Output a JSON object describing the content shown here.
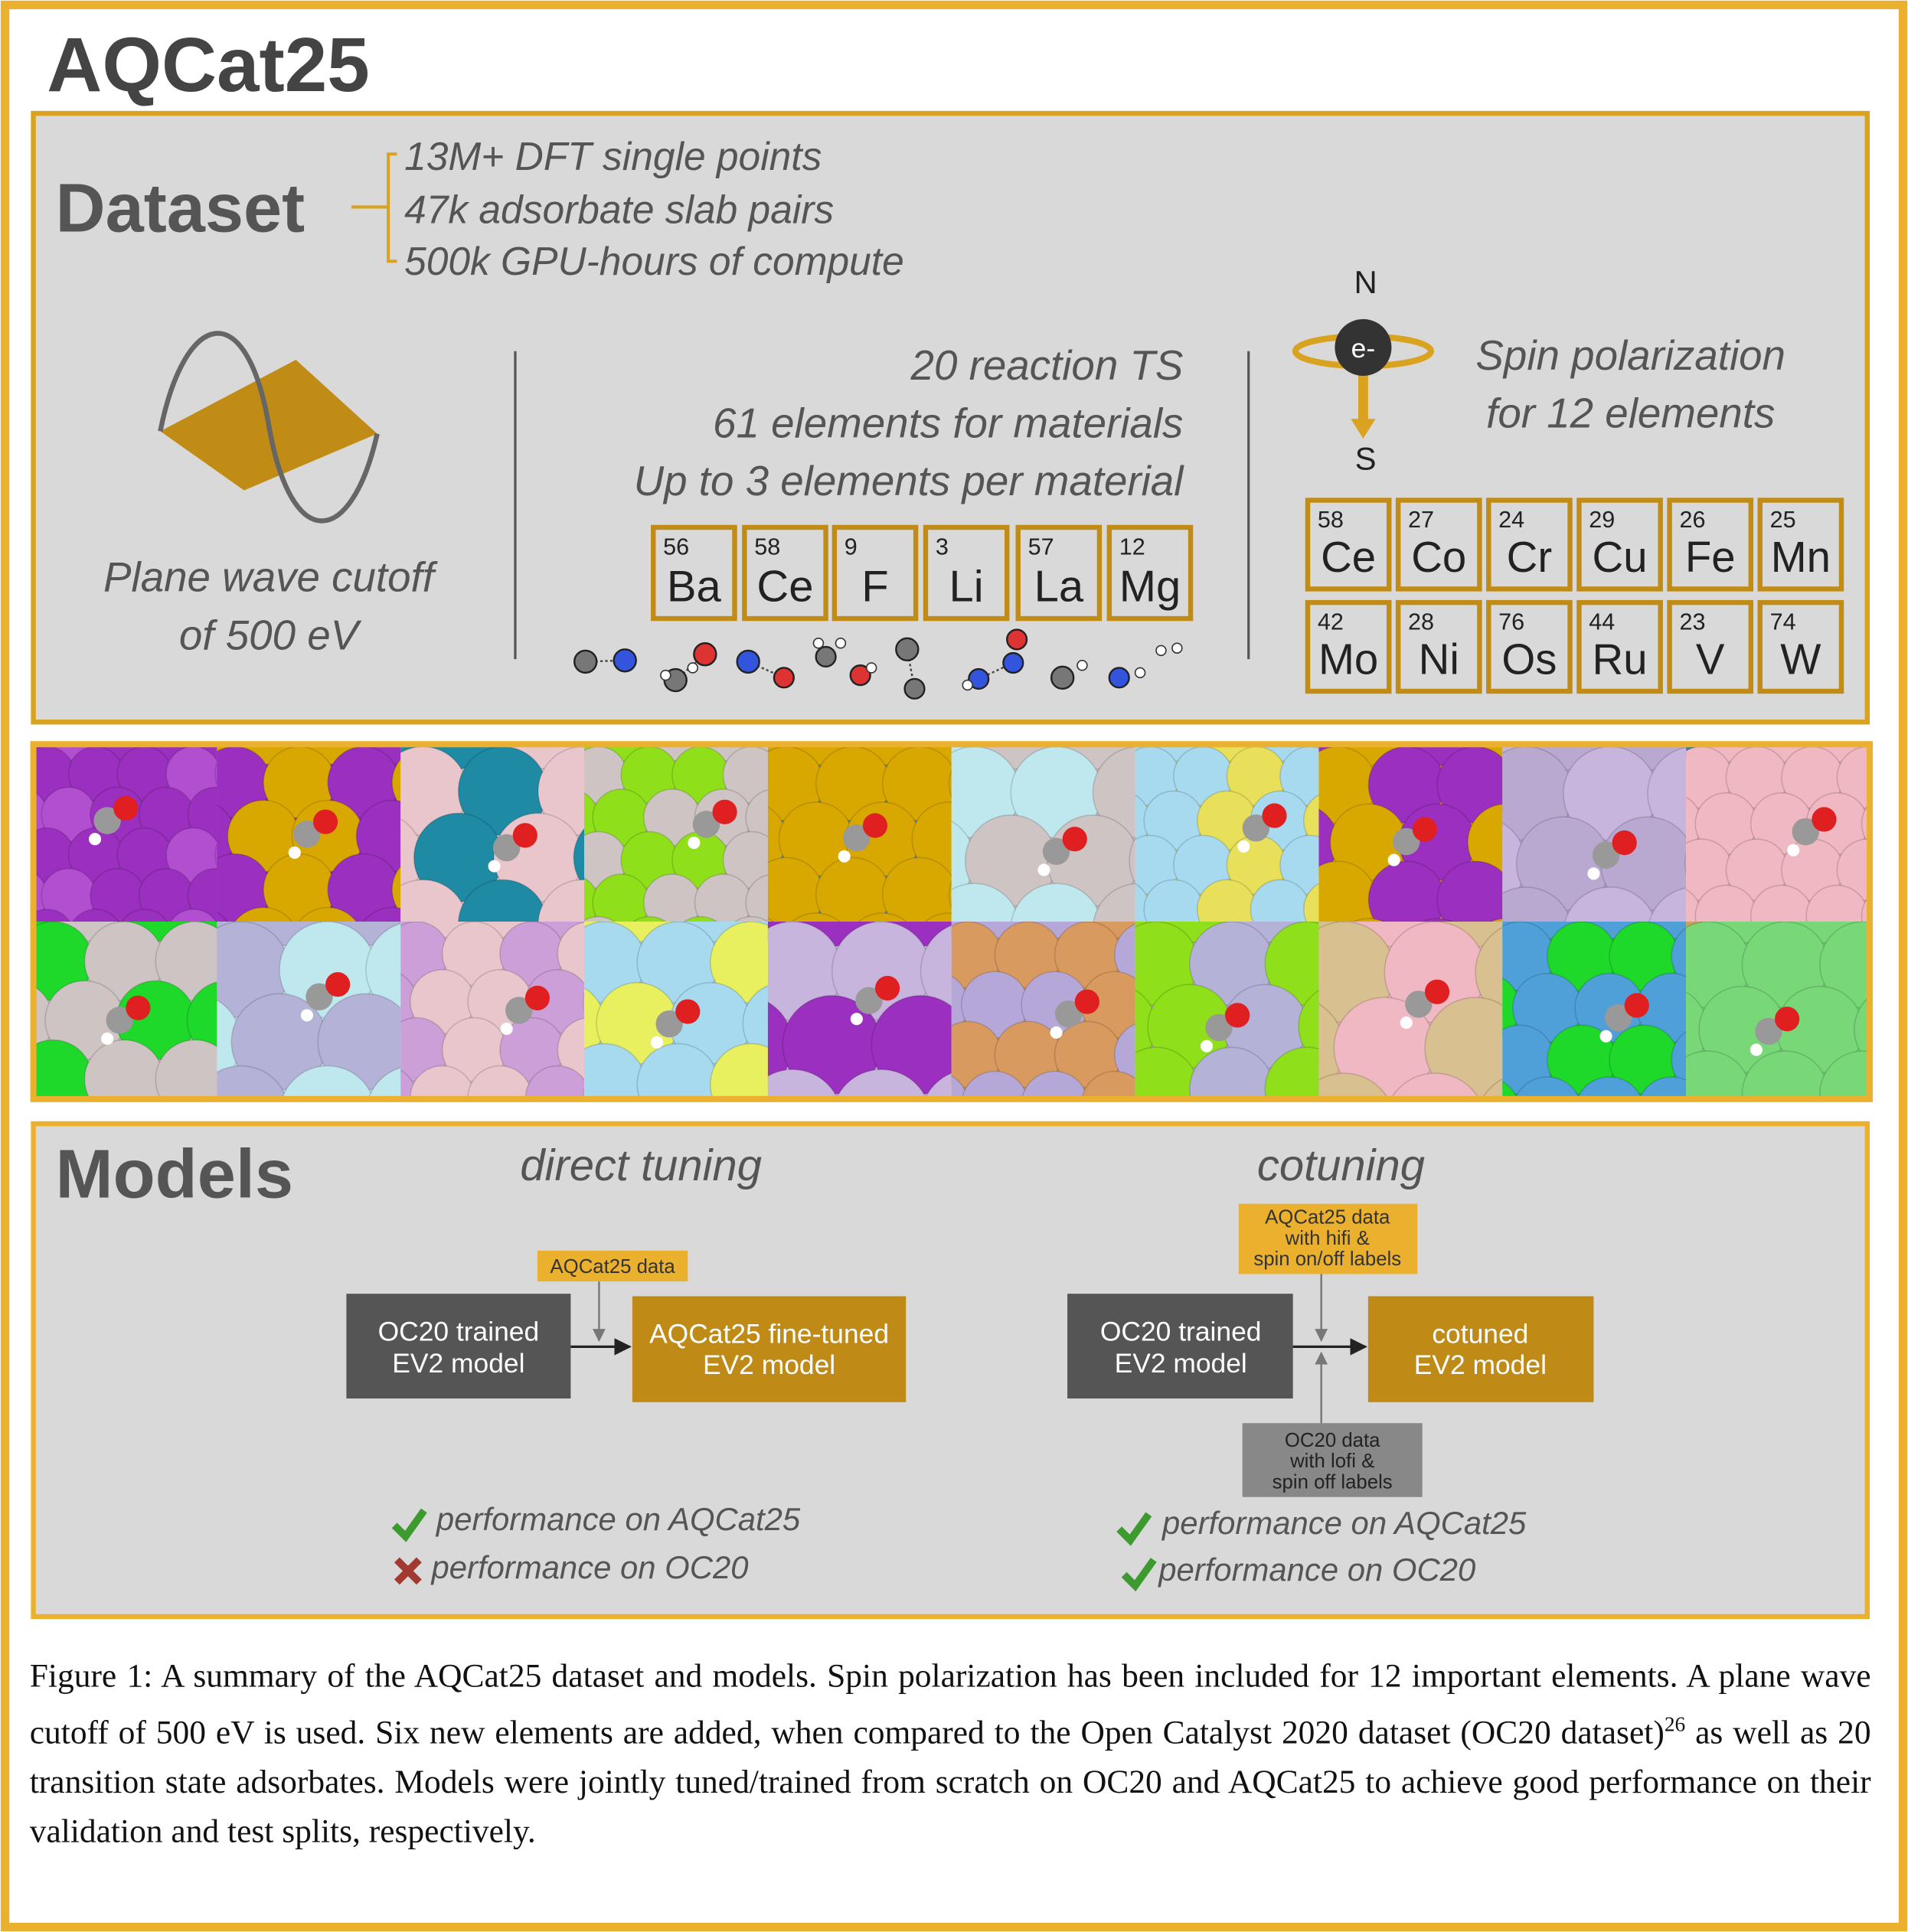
{
  "title": "AQCat25",
  "dataset": {
    "heading": "Dataset",
    "stats": [
      "13M+ DFT single points",
      "47k adsorbate slab pairs",
      "500k GPU-hours of compute"
    ],
    "cutoff": [
      "Plane wave cutoff",
      "of 500 eV"
    ],
    "reaction": {
      "lines": [
        "20 reaction TS",
        "61 elements for materials",
        "Up to 3 elements per material"
      ],
      "elements": [
        {
          "number": 56,
          "symbol": "Ba"
        },
        {
          "number": 58,
          "symbol": "Ce"
        },
        {
          "number": 9,
          "symbol": "F"
        },
        {
          "number": 3,
          "symbol": "Li"
        },
        {
          "number": 57,
          "symbol": "La"
        },
        {
          "number": 12,
          "symbol": "Mg"
        }
      ]
    },
    "spin": {
      "north": "N",
      "south": "S",
      "electron": "e-",
      "lines": [
        "Spin polarization",
        "for 12 elements"
      ],
      "elements": [
        {
          "number": 58,
          "symbol": "Ce"
        },
        {
          "number": 27,
          "symbol": "Co"
        },
        {
          "number": 24,
          "symbol": "Cr"
        },
        {
          "number": 29,
          "symbol": "Cu"
        },
        {
          "number": 26,
          "symbol": "Fe"
        },
        {
          "number": 25,
          "symbol": "Mn"
        },
        {
          "number": 42,
          "symbol": "Mo"
        },
        {
          "number": 28,
          "symbol": "Ni"
        },
        {
          "number": 76,
          "symbol": "Os"
        },
        {
          "number": 44,
          "symbol": "Ru"
        },
        {
          "number": 23,
          "symbol": "V"
        },
        {
          "number": 74,
          "symbol": "W"
        }
      ]
    }
  },
  "models": {
    "heading": "Models",
    "direct": {
      "title": "direct tuning",
      "input": [
        "AQCat25 data"
      ],
      "source": [
        "OC20 trained",
        "EV2 model"
      ],
      "target": [
        "AQCat25 fine-tuned",
        "EV2 model"
      ],
      "results": [
        "performance on AQCat25",
        "performance on OC20"
      ]
    },
    "cotuning": {
      "title": "cotuning",
      "input": [
        "AQCat25 data",
        "with hifi &",
        "spin on/off labels"
      ],
      "source": [
        "OC20 trained",
        "EV2 model"
      ],
      "target": [
        "cotuned",
        "EV2 model"
      ],
      "extra": [
        "OC20 data",
        "with lofi &",
        "spin off labels"
      ],
      "results": [
        "performance on AQCat25",
        "performance on OC20"
      ]
    }
  },
  "caption": {
    "before": "Figure 1: A summary of the AQCat25 dataset and models. Spin polarization has been included for 12 important elements. A plane wave cutoff of 500 eV is used. Six new elements are added, when compared to the Open Catalyst 2020 dataset (OC20 dataset)",
    "ref": 26,
    "after": " as well as 20 transition state adsorbates. Models were jointly tuned/trained from scratch on OC20 and AQCat25 to achieve good performance on their validation and test splits, respectively."
  }
}
